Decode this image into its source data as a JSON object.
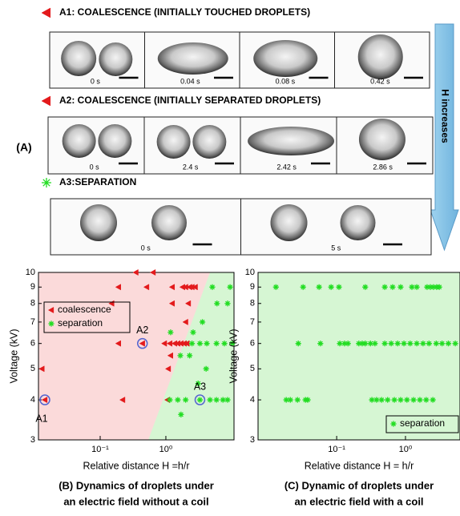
{
  "panel_a": {
    "label": "(A)",
    "arrow_text": "H increases",
    "rows": [
      {
        "title": "A1: COALESCENCE (INITIALLY TOUCHED DROPLETS)",
        "marker": "triangle-left",
        "marker_color": "#e31a1c",
        "times": [
          "0 s",
          "0.04 s",
          "0.08 s",
          "0.42 s"
        ]
      },
      {
        "title": "A2: COALESCENCE (INITIALLY SEPARATED DROPLETS)",
        "marker": "triangle-left",
        "marker_color": "#e31a1c",
        "times": [
          "0 s",
          "2.4 s",
          "2.42 s",
          "2.86 s"
        ]
      },
      {
        "title": "A3:SEPARATION",
        "marker": "star",
        "marker_color": "#22dd22",
        "times": [
          "0 s",
          "5 s"
        ]
      }
    ]
  },
  "chart_data": [
    {
      "type": "scatter",
      "xlabel": "Relative distance H =h/r",
      "ylabel": "Voltage (kV)",
      "caption": [
        "(B) Dynamics of droplets under",
        "an electric field without a coil"
      ],
      "xscale": "log",
      "yscale": "log",
      "xlim": [
        0.0115,
        10.9
      ],
      "ylim": [
        3,
        10
      ],
      "xticks": [
        {
          "value": 0.1,
          "label": "10⁻¹"
        },
        {
          "value": 1,
          "label": "10⁰"
        }
      ],
      "yticks": [
        3,
        4,
        5,
        6,
        7,
        8,
        9,
        10
      ],
      "legend": "upper left",
      "background": "#fbdada",
      "boundary": {
        "color": "#d6f6d3",
        "x": [
          0.54,
          4.7
        ],
        "y": [
          3,
          10
        ]
      },
      "series": [
        {
          "name": "coalescence",
          "color": "#e31a1c",
          "marker": "triangle-left",
          "x": [
            0.35,
            0.64,
            0.19,
            0.51,
            1.25,
            1.8,
            2.0,
            2.3,
            2.5,
            2.8,
            0.15,
            1.25,
            2.2,
            2.0,
            0.44,
            0.95,
            1.15,
            1.36,
            1.52,
            1.7,
            1.9,
            2.1,
            0.19,
            1.18,
            0.013,
            1.09,
            0.0144,
            0.22,
            1.06
          ],
          "y": [
            10,
            10,
            9,
            9,
            9,
            9,
            9,
            9,
            9,
            9,
            8,
            8,
            8,
            7,
            6,
            6,
            6,
            6,
            6,
            6,
            6,
            6,
            6,
            5.5,
            5,
            5,
            4,
            4,
            4
          ]
        },
        {
          "name": "separation",
          "color": "#22dd22",
          "marker": "star",
          "x": [
            5.1,
            9.5,
            6.0,
            8.7,
            3.6,
            1.18,
            2.6,
            2.5,
            3.3,
            4.2,
            5.9,
            7.8,
            10.3,
            1.66,
            2.3,
            4.1,
            3.1,
            1.15,
            1.52,
            2.0,
            3.3,
            4.7,
            5.9,
            7.4,
            8.7,
            1.7
          ],
          "y": [
            9,
            9,
            8,
            8,
            7,
            6.5,
            6.5,
            6,
            6,
            6,
            6,
            6,
            6,
            5.5,
            5.5,
            5,
            4.5,
            4,
            4,
            4,
            4,
            4,
            4,
            4,
            4,
            3.6
          ]
        }
      ],
      "annotations": [
        {
          "text": "A1",
          "x": 0.0144,
          "y": 4,
          "position": "below"
        },
        {
          "text": "A2",
          "x": 0.44,
          "y": 6,
          "position": "above"
        },
        {
          "text": "A3",
          "x": 3.3,
          "y": 4,
          "position": "above"
        }
      ]
    },
    {
      "type": "scatter",
      "xlabel": "Relative distance H = h/r",
      "ylabel": "Voltage (kV)",
      "caption": [
        "(C) Dynamic of droplets under",
        "an electric field with a coil"
      ],
      "xscale": "log",
      "yscale": "log",
      "xlim": [
        0.0072,
        6.2
      ],
      "ylim": [
        3,
        10
      ],
      "xticks": [
        {
          "value": 0.1,
          "label": "10⁻¹"
        },
        {
          "value": 1,
          "label": "10⁰"
        }
      ],
      "yticks": [
        3,
        4,
        5,
        6,
        7,
        8,
        9,
        10
      ],
      "legend": "lower right",
      "background": "#d6f6d3",
      "series": [
        {
          "name": "separation",
          "color": "#22dd22",
          "marker": "star",
          "x": [
            0.0131,
            0.0325,
            0.0555,
            0.083,
            0.108,
            0.26,
            0.5,
            0.65,
            0.85,
            1.24,
            1.46,
            2.06,
            2.3,
            2.55,
            2.84,
            3.1,
            0.0277,
            0.058,
            0.111,
            0.13,
            0.146,
            0.21,
            0.235,
            0.26,
            0.31,
            0.36,
            0.5,
            0.62,
            0.77,
            0.95,
            1.17,
            1.46,
            1.8,
            2.2,
            2.8,
            3.4,
            4.2,
            5.3,
            0.0185,
            0.0212,
            0.027,
            0.0352,
            0.038,
            0.325,
            0.38,
            0.45,
            0.55,
            0.69,
            0.85,
            1.05,
            1.31,
            1.62,
            2.0,
            2.5
          ],
          "y": [
            9,
            9,
            9,
            9,
            9,
            9,
            9,
            9,
            9,
            9,
            9,
            9,
            9,
            9,
            9,
            9,
            6,
            6,
            6,
            6,
            6,
            6,
            6,
            6,
            6,
            6,
            6,
            6,
            6,
            6,
            6,
            6,
            6,
            6,
            6,
            6,
            6,
            6,
            4,
            4,
            4,
            4,
            4,
            4,
            4,
            4,
            4,
            4,
            4,
            4,
            4,
            4,
            4,
            4
          ]
        }
      ]
    }
  ]
}
